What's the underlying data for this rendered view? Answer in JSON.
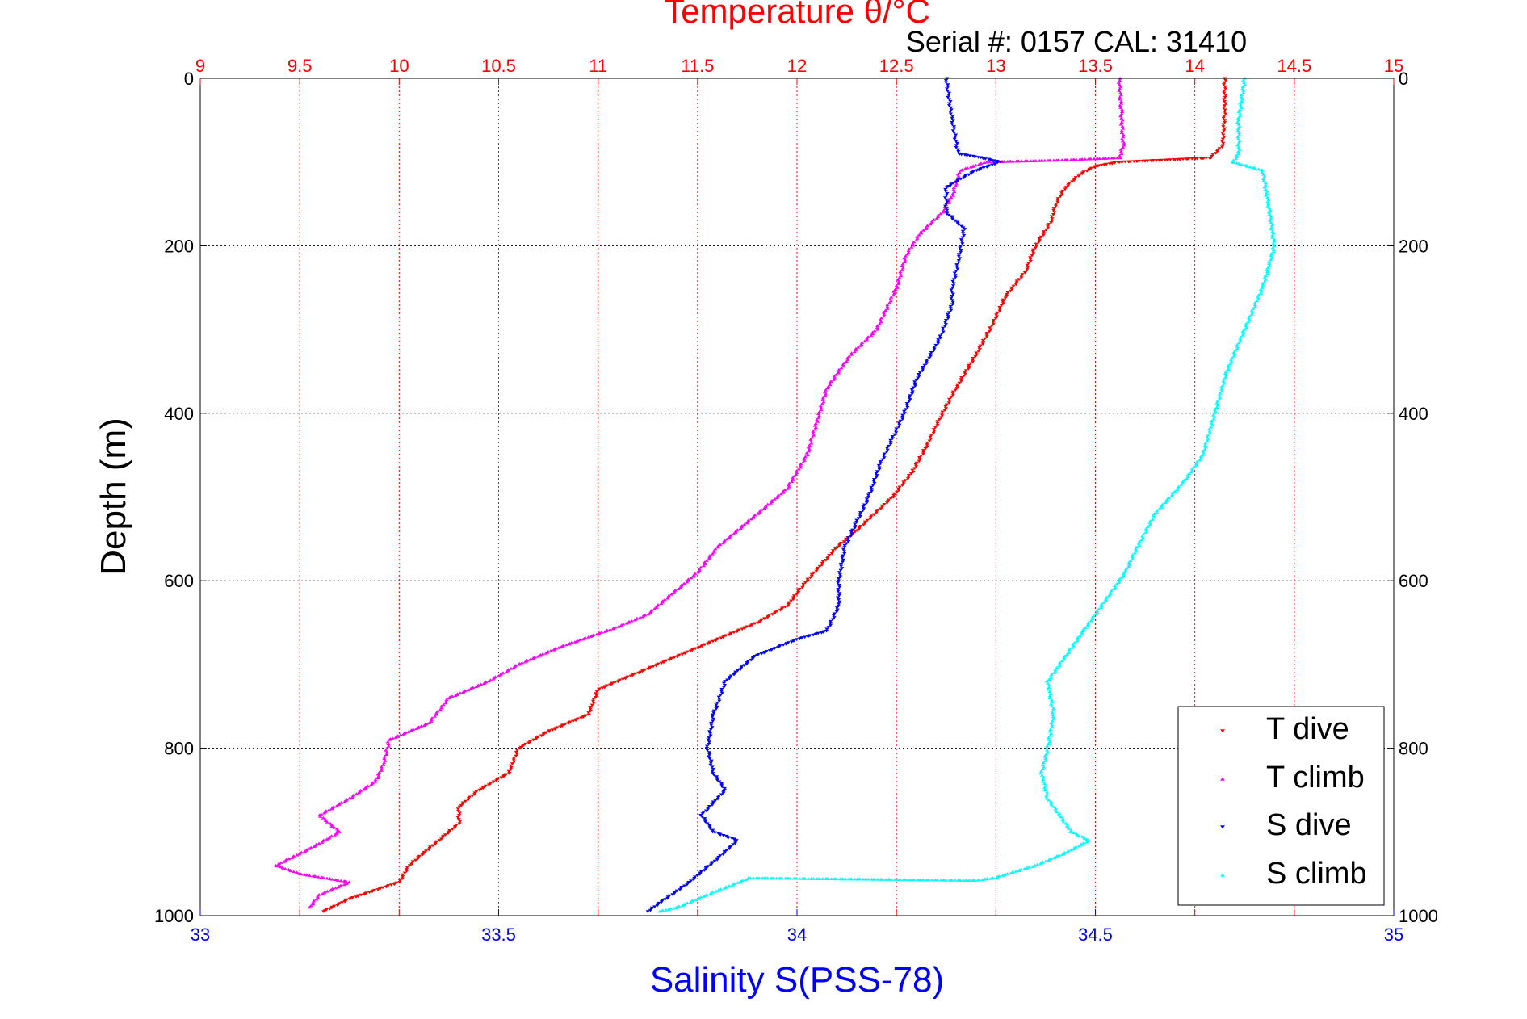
{
  "chart_data": {
    "type": "scatter",
    "title": "Temperature θ/°C",
    "subtitle": "Serial #: 0157  CAL: 31410",
    "xlabel": "Salinity S(PSS-78)",
    "ylabel": "Depth (m)",
    "y_reversed": true,
    "ylim": [
      0,
      1000
    ],
    "xlim": [
      33,
      35
    ],
    "x2lim": [
      9,
      15
    ],
    "grid": true,
    "legend_position": "bottom-right",
    "yticks": [
      0,
      200,
      400,
      600,
      800,
      1000
    ],
    "xticks": [
      33,
      33.5,
      34,
      34.5,
      35
    ],
    "x2ticks": [
      9,
      9.5,
      10,
      10.5,
      11,
      11.5,
      12,
      12.5,
      13,
      13.5,
      14,
      14.5,
      15
    ],
    "colors": {
      "title": "#ff0000",
      "xlabel": "#0000ff",
      "bottom_ticks": "#0000ff",
      "top_ticks": "#ff0000",
      "grid_vertical": "#ff0000",
      "grid_horizontal": "#000000"
    },
    "series": [
      {
        "name": "T dive",
        "axis": "temperature",
        "color": "#ff0000",
        "marker": "triangle-down",
        "points": [
          [
            14.15,
            0
          ],
          [
            14.15,
            40
          ],
          [
            14.14,
            80
          ],
          [
            14.08,
            95
          ],
          [
            13.9,
            97
          ],
          [
            13.62,
            100
          ],
          [
            13.5,
            105
          ],
          [
            13.42,
            115
          ],
          [
            13.35,
            130
          ],
          [
            13.3,
            150
          ],
          [
            13.28,
            170
          ],
          [
            13.2,
            200
          ],
          [
            13.15,
            230
          ],
          [
            13.05,
            260
          ],
          [
            12.97,
            300
          ],
          [
            12.9,
            330
          ],
          [
            12.8,
            370
          ],
          [
            12.72,
            405
          ],
          [
            12.65,
            440
          ],
          [
            12.58,
            470
          ],
          [
            12.48,
            500
          ],
          [
            12.3,
            540
          ],
          [
            12.2,
            560
          ],
          [
            12.05,
            600
          ],
          [
            11.95,
            630
          ],
          [
            11.8,
            650
          ],
          [
            11.5,
            680
          ],
          [
            11.2,
            710
          ],
          [
            11.0,
            730
          ],
          [
            10.95,
            760
          ],
          [
            10.75,
            780
          ],
          [
            10.6,
            800
          ],
          [
            10.55,
            830
          ],
          [
            10.4,
            850
          ],
          [
            10.3,
            870
          ],
          [
            10.3,
            890
          ],
          [
            10.2,
            910
          ],
          [
            10.05,
            940
          ],
          [
            10.0,
            960
          ],
          [
            9.75,
            980
          ],
          [
            9.62,
            995
          ]
        ]
      },
      {
        "name": "T climb",
        "axis": "temperature",
        "color": "#ff00ff",
        "marker": "triangle-up",
        "points": [
          [
            13.62,
            0
          ],
          [
            13.63,
            40
          ],
          [
            13.64,
            80
          ],
          [
            13.62,
            95
          ],
          [
            13.3,
            98
          ],
          [
            12.95,
            100
          ],
          [
            12.82,
            110
          ],
          [
            12.78,
            140
          ],
          [
            12.73,
            160
          ],
          [
            12.62,
            185
          ],
          [
            12.55,
            210
          ],
          [
            12.5,
            250
          ],
          [
            12.4,
            300
          ],
          [
            12.27,
            330
          ],
          [
            12.15,
            370
          ],
          [
            12.1,
            410
          ],
          [
            12.05,
            450
          ],
          [
            11.95,
            490
          ],
          [
            11.8,
            520
          ],
          [
            11.6,
            560
          ],
          [
            11.5,
            590
          ],
          [
            11.4,
            610
          ],
          [
            11.25,
            640
          ],
          [
            11.1,
            655
          ],
          [
            10.8,
            680
          ],
          [
            10.6,
            700
          ],
          [
            10.45,
            720
          ],
          [
            10.25,
            740
          ],
          [
            10.15,
            770
          ],
          [
            9.95,
            790
          ],
          [
            9.92,
            820
          ],
          [
            9.88,
            840
          ],
          [
            9.75,
            860
          ],
          [
            9.6,
            880
          ],
          [
            9.7,
            900
          ],
          [
            9.55,
            920
          ],
          [
            9.38,
            940
          ],
          [
            9.5,
            950
          ],
          [
            9.75,
            960
          ],
          [
            9.6,
            975
          ],
          [
            9.55,
            990
          ]
        ]
      },
      {
        "name": "S dive",
        "axis": "salinity",
        "color": "#0000ff",
        "marker": "triangle-down",
        "points": [
          [
            34.25,
            0
          ],
          [
            34.26,
            50
          ],
          [
            34.27,
            90
          ],
          [
            34.31,
            95
          ],
          [
            34.34,
            100
          ],
          [
            34.3,
            110
          ],
          [
            34.25,
            130
          ],
          [
            34.25,
            160
          ],
          [
            34.28,
            180
          ],
          [
            34.27,
            220
          ],
          [
            34.26,
            250
          ],
          [
            34.26,
            270
          ],
          [
            34.24,
            310
          ],
          [
            34.2,
            360
          ],
          [
            34.18,
            400
          ],
          [
            34.16,
            430
          ],
          [
            34.14,
            460
          ],
          [
            34.12,
            500
          ],
          [
            34.1,
            530
          ],
          [
            34.08,
            560
          ],
          [
            34.07,
            600
          ],
          [
            34.07,
            630
          ],
          [
            34.05,
            660
          ],
          [
            34.0,
            670
          ],
          [
            33.93,
            690
          ],
          [
            33.88,
            720
          ],
          [
            33.86,
            760
          ],
          [
            33.85,
            800
          ],
          [
            33.86,
            830
          ],
          [
            33.88,
            850
          ],
          [
            33.84,
            880
          ],
          [
            33.86,
            900
          ],
          [
            33.9,
            910
          ],
          [
            33.87,
            930
          ],
          [
            33.82,
            960
          ],
          [
            33.77,
            985
          ],
          [
            33.75,
            995
          ]
        ]
      },
      {
        "name": "S climb",
        "axis": "salinity",
        "color": "#00ffff",
        "marker": "triangle-up",
        "points": [
          [
            34.75,
            0
          ],
          [
            34.74,
            50
          ],
          [
            34.74,
            90
          ],
          [
            34.73,
            100
          ],
          [
            34.78,
            110
          ],
          [
            34.79,
            150
          ],
          [
            34.8,
            200
          ],
          [
            34.78,
            250
          ],
          [
            34.75,
            300
          ],
          [
            34.72,
            350
          ],
          [
            34.7,
            400
          ],
          [
            34.68,
            450
          ],
          [
            34.65,
            480
          ],
          [
            34.6,
            520
          ],
          [
            34.57,
            560
          ],
          [
            34.55,
            590
          ],
          [
            34.52,
            620
          ],
          [
            34.48,
            660
          ],
          [
            34.45,
            690
          ],
          [
            34.42,
            720
          ],
          [
            34.43,
            760
          ],
          [
            34.42,
            800
          ],
          [
            34.41,
            830
          ],
          [
            34.42,
            860
          ],
          [
            34.44,
            880
          ],
          [
            34.46,
            900
          ],
          [
            34.49,
            910
          ],
          [
            34.45,
            925
          ],
          [
            34.4,
            940
          ],
          [
            34.33,
            955
          ],
          [
            34.3,
            958
          ],
          [
            33.92,
            955
          ],
          [
            33.85,
            975
          ],
          [
            33.8,
            990
          ],
          [
            33.77,
            995
          ]
        ]
      }
    ]
  }
}
